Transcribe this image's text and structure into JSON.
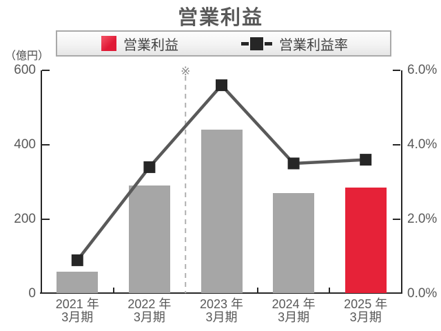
{
  "title": "営業利益",
  "unit_label": "（億円）",
  "legend": {
    "bar_label": "営業利益",
    "line_label": "営業利益率"
  },
  "annotation": "※",
  "colors": {
    "bar": "#a6a6a6",
    "bar_highlight": "#e62238",
    "line": "#595959",
    "marker": "#262626",
    "axis": "#262626",
    "label": "#595959",
    "separator": "#b0b0b0"
  },
  "chart_data": {
    "type": "bar",
    "title": "営業利益",
    "categories": [
      [
        "2021 年",
        "3月期"
      ],
      [
        "2022 年",
        "3月期"
      ],
      [
        "2023 年",
        "3月期"
      ],
      [
        "2024 年",
        "3月期"
      ],
      [
        "2025 年",
        "3月期"
      ]
    ],
    "series": [
      {
        "name": "営業利益",
        "type": "bar",
        "axis": "left",
        "unit": "億円",
        "values": [
          60,
          290,
          440,
          270,
          285
        ]
      },
      {
        "name": "営業利益率",
        "type": "line",
        "axis": "right",
        "unit": "%",
        "values": [
          0.9,
          3.4,
          5.6,
          3.5,
          3.6
        ]
      }
    ],
    "highlight_index": 4,
    "left_axis": {
      "label": "（億円）",
      "min": 0,
      "max": 600,
      "ticks": [
        0,
        200,
        400,
        600
      ]
    },
    "right_axis": {
      "min": 0,
      "max": 6,
      "ticks": [
        "0.0%",
        "2.0%",
        "4.0%",
        "6.0%"
      ]
    },
    "separator": {
      "after_index": 1,
      "annotation": "※"
    },
    "legend_position": "top",
    "grid": false
  }
}
